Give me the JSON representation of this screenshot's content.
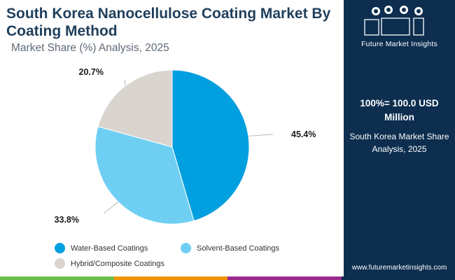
{
  "header": {
    "title": "South Korea Nanocellulose Coating Market By Coating Method",
    "subtitle": "Market Share (%) Analysis, 2025"
  },
  "chart_data": {
    "type": "pie",
    "categories": [
      "Water-Based Coatings",
      "Solvent-Based Coatings",
      "Hybrid/Composite Coatings"
    ],
    "values": [
      45.4,
      33.8,
      20.7
    ],
    "labels": [
      "45.4%",
      "33.8%",
      "20.7%"
    ],
    "colors": [
      "#009fdf",
      "#6fcff2",
      "#d9d4ce"
    ],
    "legend_position": "bottom"
  },
  "sidebar": {
    "logo_name": "fmi",
    "logo_subtitle": "Future Market Insights",
    "total_line": "100%= 100.0 USD Million",
    "desc": "South Korea Market Share Analysis, 2025",
    "url": "www.futuremarketinsights.com"
  },
  "bottom_bar_colors": [
    "#6abf4b",
    "#f39200",
    "#9b2a8c",
    "#0d2e4f"
  ]
}
